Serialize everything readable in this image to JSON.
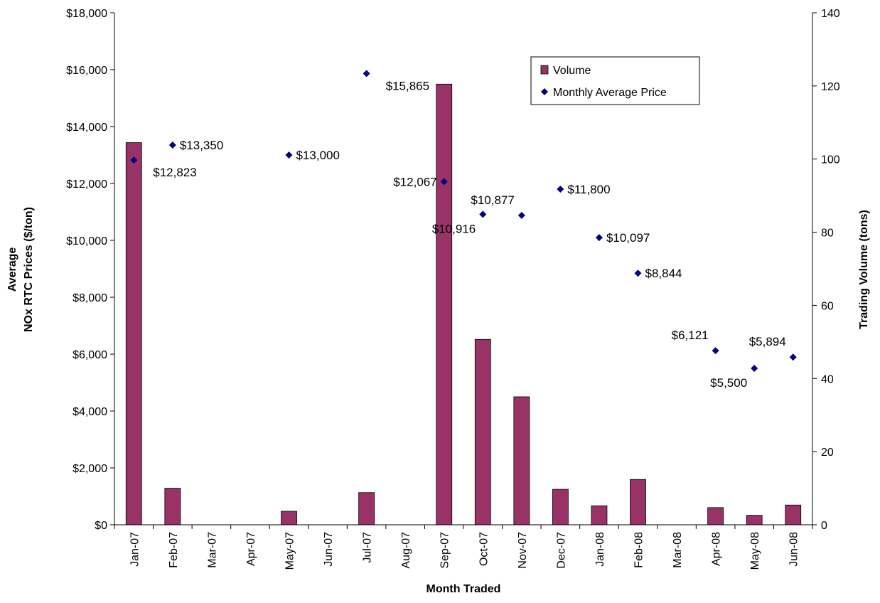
{
  "chart_data": {
    "type": "bar",
    "xlabel": "Month Traded",
    "ylabel_left_line1": "Average",
    "ylabel_left_line2": "NOx RTC Prices ($/ton)",
    "ylabel_right": "Trading Volume (tons)",
    "ylim_left": [
      0,
      18000
    ],
    "ylim_right": [
      0,
      140
    ],
    "left_ticks": [
      "$0",
      "$2,000",
      "$4,000",
      "$6,000",
      "$8,000",
      "$10,000",
      "$12,000",
      "$14,000",
      "$16,000",
      "$18,000"
    ],
    "left_tick_values": [
      0,
      2000,
      4000,
      6000,
      8000,
      10000,
      12000,
      14000,
      16000,
      18000
    ],
    "right_ticks": [
      "0",
      "20",
      "40",
      "60",
      "80",
      "100",
      "120",
      "140"
    ],
    "right_tick_values": [
      0,
      20,
      40,
      60,
      80,
      100,
      120,
      140
    ],
    "categories": [
      "Jan-07",
      "Feb-07",
      "Mar-07",
      "Apr-07",
      "May-07",
      "Jun-07",
      "Jul-07",
      "Aug-07",
      "Sep-07",
      "Oct-07",
      "Nov-07",
      "Dec-07",
      "Jan-08",
      "Feb-08",
      "Mar-08",
      "Apr-08",
      "May-08",
      "Jun-08"
    ],
    "legend_position": "top-right",
    "series": [
      {
        "name": "Volume",
        "kind": "bar",
        "axis": "right",
        "color": "#993366",
        "values": [
          104.5,
          10,
          0,
          0,
          3.7,
          0,
          8.8,
          0,
          120.5,
          50.7,
          35,
          9.7,
          5.2,
          12.4,
          0,
          4.7,
          2.6,
          5.4
        ]
      },
      {
        "name": "Monthly Average Price",
        "kind": "scatter",
        "axis": "left",
        "color": "#000080",
        "values": [
          12823,
          13350,
          null,
          null,
          13000,
          null,
          15865,
          null,
          12067,
          10916,
          10877,
          11800,
          10097,
          8844,
          null,
          6121,
          5500,
          5894
        ],
        "labels": [
          "$12,823",
          "$13,350",
          "",
          "",
          "$13,000",
          "",
          "$15,865",
          "",
          "$12,067",
          "$10,916",
          "$10,877",
          "$11,800",
          "$10,097",
          "$8,844",
          "",
          "$6,121",
          "$5,500",
          "$5,894"
        ],
        "label_pos": [
          "below-right",
          "right",
          "",
          "",
          "right",
          "",
          "below-right",
          "",
          "left",
          "below-left",
          "above-left",
          "right",
          "right",
          "right",
          "",
          "above-left",
          "below-left",
          "above-left"
        ]
      }
    ]
  }
}
